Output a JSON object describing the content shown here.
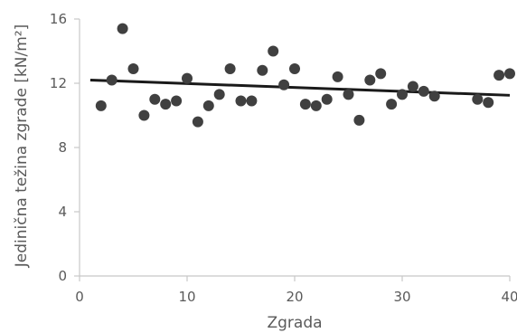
{
  "chart_data": {
    "type": "scatter",
    "title": "",
    "xlabel": "Zgrada",
    "ylabel": "Jedinična težina zgrade [kN/m²]",
    "xlim": [
      0,
      40
    ],
    "ylim": [
      0,
      16
    ],
    "x_ticks": [
      0,
      10,
      20,
      30,
      40
    ],
    "y_ticks": [
      0,
      4,
      8,
      12,
      16
    ],
    "x_tick_labels": [
      "0",
      "10",
      "20",
      "30",
      "40"
    ],
    "y_tick_labels": [
      "0",
      "4",
      "8",
      "12",
      "16"
    ],
    "grid": false,
    "legend": "none",
    "marker_color": "#404040",
    "line_color": "#1a1a1a",
    "axis_color": "#c8c8c8",
    "series": [
      {
        "x": [
          2,
          3,
          4,
          5,
          6,
          7,
          8,
          9,
          10,
          11,
          12,
          13,
          14,
          15,
          16,
          17,
          18,
          19,
          20,
          21,
          22,
          23,
          24,
          25,
          26,
          27,
          28,
          29,
          30,
          31,
          32,
          33,
          37,
          38,
          39,
          40
        ],
        "y": [
          10.6,
          12.2,
          15.4,
          12.9,
          10.0,
          11.0,
          10.7,
          10.9,
          12.3,
          9.6,
          10.6,
          11.3,
          12.9,
          10.9,
          10.9,
          12.8,
          14.0,
          11.9,
          12.9,
          10.7,
          10.6,
          11.0,
          12.4,
          11.3,
          9.7,
          12.2,
          12.6,
          10.7,
          11.3,
          11.8,
          11.5,
          11.2,
          11.0,
          10.8,
          12.5,
          12.6
        ]
      }
    ],
    "trendline": {
      "x": [
        1,
        40
      ],
      "y": [
        12.2,
        11.25
      ]
    }
  }
}
